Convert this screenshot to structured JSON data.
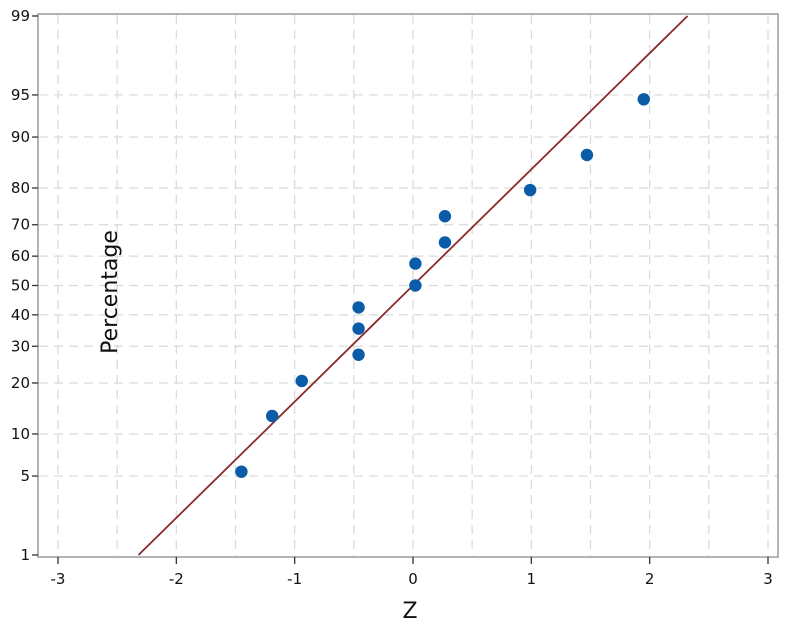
{
  "chart_data": {
    "type": "scatter",
    "title": "",
    "xlabel": "Z",
    "ylabel": "Percentage",
    "xlim": [
      -3,
      3
    ],
    "y_scale": "normal-probability",
    "y_range": [
      1,
      99
    ],
    "grid": true,
    "legend": "none",
    "x_ticks": [
      "-3",
      "-2",
      "-1",
      "0",
      "1",
      "2",
      "3"
    ],
    "y_ticks": [
      "1",
      "5",
      "10",
      "20",
      "30",
      "40",
      "50",
      "60",
      "70",
      "80",
      "90",
      "95",
      "99"
    ],
    "points": [
      {
        "x": -1.45,
        "y": 5.4
      },
      {
        "x": -1.19,
        "y": 13.0
      },
      {
        "x": -0.94,
        "y": 20.5
      },
      {
        "x": -0.46,
        "y": 27.5
      },
      {
        "x": -0.46,
        "y": 35.5
      },
      {
        "x": -0.46,
        "y": 42.5
      },
      {
        "x": 0.02,
        "y": 50.0
      },
      {
        "x": 0.02,
        "y": 57.5
      },
      {
        "x": 0.27,
        "y": 64.5
      },
      {
        "x": 0.27,
        "y": 72.5
      },
      {
        "x": 0.99,
        "y": 79.5
      },
      {
        "x": 1.47,
        "y": 87.0
      },
      {
        "x": 1.95,
        "y": 94.6
      }
    ],
    "fit_line": {
      "start": {
        "x": -2.32,
        "y": 1.0
      },
      "end": {
        "x": 2.32,
        "y": 99.0
      }
    },
    "colors": {
      "points": "#0a5ca8",
      "fit_line": "#8b2a2a",
      "grid": "#d9d9d9",
      "frame": "#9a9a9a"
    }
  }
}
